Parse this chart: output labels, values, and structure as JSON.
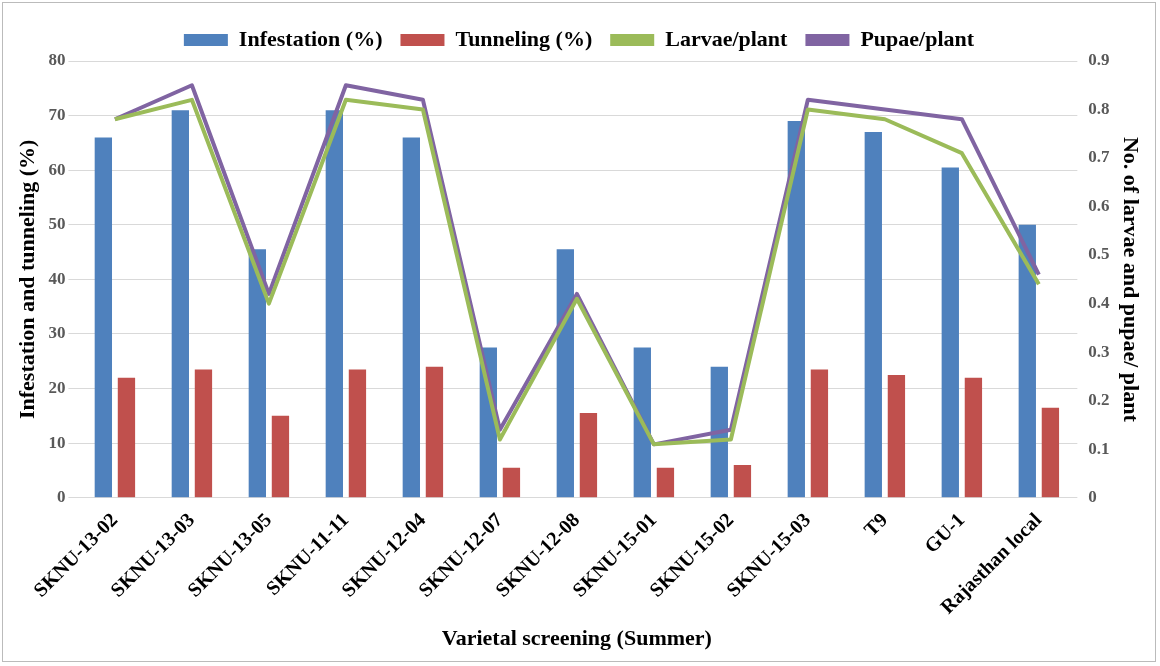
{
  "chart_data": {
    "type": "bar",
    "xlabel": "Varietal screening (Summer)",
    "ylabel": "Infestation and tunneling (%)",
    "y2label": "No. of larvae and pupae/ plant",
    "categories": [
      "SKNU-13-02",
      "SKNU-13-03",
      "SKNU-13-05",
      "SKNU-11-11",
      "SKNU-12-04",
      "SKNU-12-07",
      "SKNU-12-08",
      "SKNU-15-01",
      "SKNU-15-02",
      "SKNU-15-03",
      "T9",
      "GU-1",
      "Rajasthan local"
    ],
    "series": [
      {
        "name": "Infestation (%)",
        "color": "#4f81bd",
        "values": [
          66,
          71,
          45.5,
          71,
          66,
          27.5,
          45.5,
          27.5,
          24,
          69,
          67,
          60.5,
          50
        ]
      },
      {
        "name": "Tunneling (%)",
        "color": "#c0504d",
        "values": [
          22,
          23.5,
          15,
          23.5,
          24,
          5.5,
          15.5,
          5.5,
          6,
          23.5,
          22.5,
          22,
          16.5
        ]
      },
      {
        "name": "Larvae/plant",
        "type": "line",
        "axis": "y2",
        "color": "#9bbb59",
        "values": [
          0.78,
          0.82,
          0.4,
          0.82,
          0.8,
          0.12,
          0.41,
          0.11,
          0.12,
          0.8,
          0.78,
          0.71,
          0.44
        ]
      },
      {
        "name": "Pupae/plant",
        "type": "line",
        "axis": "y2",
        "color": "#8064a2",
        "values": [
          0.78,
          0.85,
          0.42,
          0.85,
          0.82,
          0.14,
          0.42,
          0.11,
          0.14,
          0.82,
          0.8,
          0.78,
          0.46
        ]
      }
    ],
    "ylim": [
      0,
      80
    ],
    "yticks": [
      0,
      10,
      20,
      30,
      40,
      50,
      60,
      70,
      80
    ],
    "y2lim": [
      0,
      0.9
    ],
    "y2ticks": [
      0,
      0.1,
      0.2,
      0.3,
      0.4,
      0.5,
      0.6,
      0.7,
      0.8,
      0.9
    ],
    "grid": "y",
    "legend": "top",
    "marker": "none",
    "line_style": "solid"
  }
}
